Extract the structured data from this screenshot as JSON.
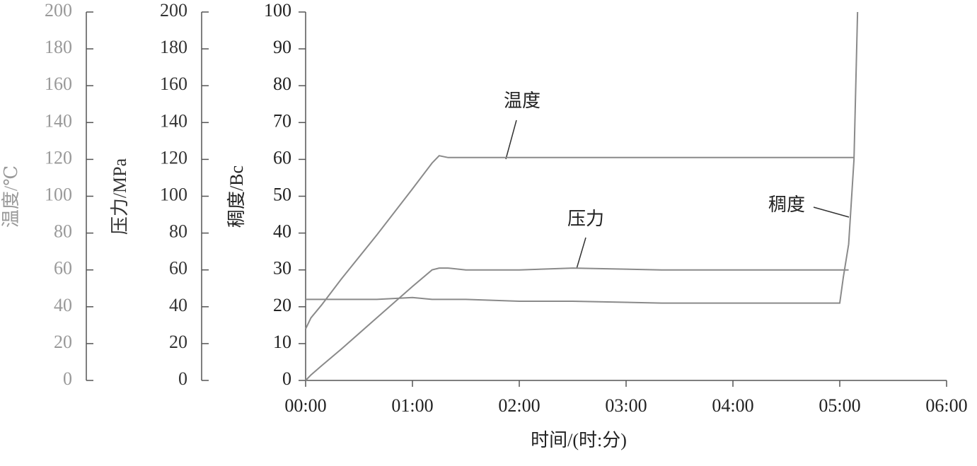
{
  "chart_data": {
    "type": "line",
    "xlabel": "时间/(时:分)",
    "xlim": [
      0,
      360
    ],
    "xticks": [
      {
        "value": 0,
        "label": "00:00"
      },
      {
        "value": 60,
        "label": "01:00"
      },
      {
        "value": 120,
        "label": "02:00"
      },
      {
        "value": 180,
        "label": "03:00"
      },
      {
        "value": 240,
        "label": "04:00"
      },
      {
        "value": 300,
        "label": "05:00"
      },
      {
        "value": 360,
        "label": "06:00"
      }
    ],
    "axes": [
      {
        "title": "温度/℃",
        "ylim": [
          0,
          200
        ],
        "yticks": [
          0,
          20,
          40,
          60,
          80,
          100,
          120,
          140,
          160,
          180,
          200
        ],
        "color": "#999999"
      },
      {
        "title": "压力/MPa",
        "ylim": [
          0,
          200
        ],
        "yticks": [
          0,
          20,
          40,
          60,
          80,
          100,
          120,
          140,
          160,
          180,
          200
        ],
        "color": "#333333"
      },
      {
        "title": "稠度/Bc",
        "ylim": [
          0,
          100
        ],
        "yticks": [
          0,
          10,
          20,
          30,
          40,
          50,
          60,
          70,
          80,
          90,
          100
        ],
        "color": "#222222"
      }
    ],
    "x": [
      0,
      3,
      9,
      20,
      40,
      60,
      71,
      75,
      80,
      90,
      120,
      150,
      200,
      250,
      300,
      302,
      305,
      308,
      310
    ],
    "series": [
      {
        "name": "温度",
        "axis": 0,
        "color": "#8a8a8a",
        "values": [
          28,
          34,
          41,
          55,
          79,
          104,
          118,
          122,
          121,
          121,
          121,
          121,
          121,
          121,
          121,
          121,
          121,
          121,
          null
        ]
      },
      {
        "name": "压力",
        "axis": 1,
        "color": "#8a8a8a",
        "values": [
          0,
          3,
          8,
          17,
          34,
          51,
          60,
          61,
          61,
          60,
          60,
          61,
          60,
          60,
          60,
          60,
          60,
          null,
          null
        ]
      },
      {
        "name": "稠度",
        "axis": 2,
        "color": "#8a8a8a",
        "values": [
          22,
          22,
          22,
          22,
          22,
          22.5,
          22,
          22,
          22,
          22,
          21.5,
          21.5,
          21,
          21,
          21,
          28,
          37,
          60,
          100
        ]
      }
    ]
  }
}
